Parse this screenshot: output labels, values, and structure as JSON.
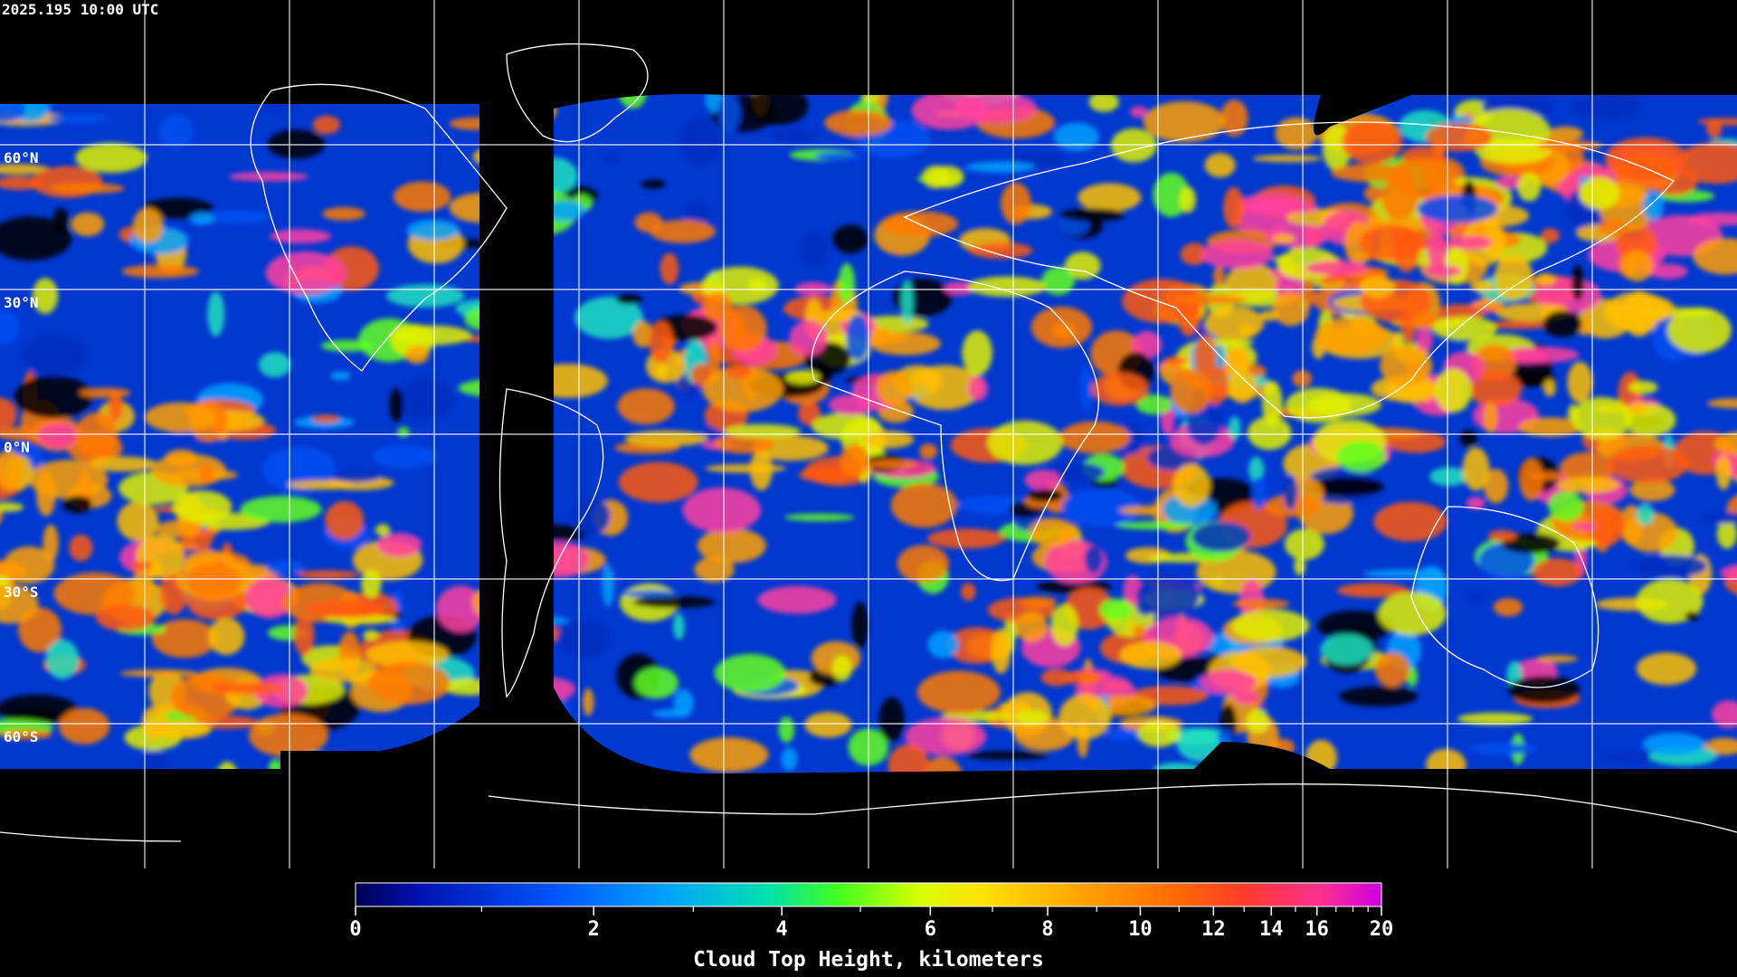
{
  "timestamp": "2025.195 10:00 UTC",
  "map": {
    "lat_labels": [
      "60°N",
      "30°N",
      "0°N",
      "30°S",
      "60°S"
    ]
  },
  "colorbar": {
    "title": "Cloud Top Height, kilometers",
    "ticks": [
      0,
      2,
      4,
      6,
      8,
      10,
      12,
      14,
      16,
      20
    ],
    "minor_ticks": [
      1,
      3,
      5,
      7,
      9,
      11,
      13,
      15,
      17,
      18,
      19
    ]
  }
}
